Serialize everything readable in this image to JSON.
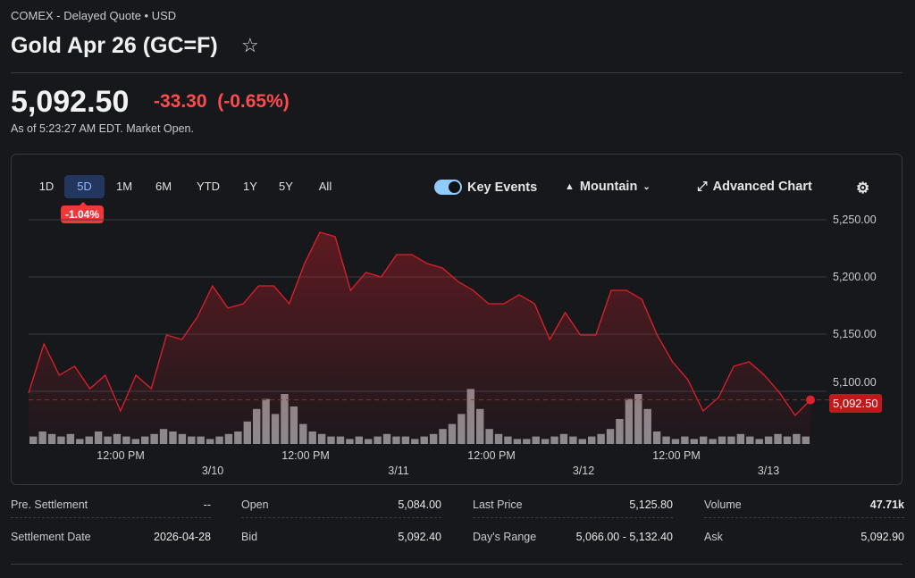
{
  "header": {
    "exchange": "COMEX - Delayed Quote • USD",
    "title": "Gold Apr 26 (GC=F)",
    "star_icon": "☆"
  },
  "quote": {
    "price": "5,092.50",
    "change": "-33.30",
    "change_pct": "(-0.65%)",
    "as_of": "As of 5:23:27 AM EDT. Market Open."
  },
  "ranges": [
    "1D",
    "5D",
    "1M",
    "6M",
    "YTD",
    "1Y",
    "5Y",
    "All"
  ],
  "active_range": "5D",
  "range_change": "-1.04%",
  "toolbar": {
    "key_events": "Key Events",
    "key_events_on": true,
    "chart_type": "Mountain",
    "advanced": "Advanced Chart"
  },
  "chart_data": {
    "type": "area",
    "ylim": [
      5050,
      5270
    ],
    "y_ticks": [
      "5,250.00",
      "5,200.00",
      "5,150.00",
      "5,100.00"
    ],
    "y_tick_values": [
      5250,
      5200,
      5150,
      5100
    ],
    "x_time_labels": [
      "12:00 PM",
      "12:00 PM",
      "12:00 PM",
      "12:00 PM"
    ],
    "x_date_labels": [
      "3/10",
      "3/11",
      "3/12",
      "3/13"
    ],
    "last_price": 5092.5,
    "last_label": "5,092.50",
    "line_color": "#e0202a",
    "values": [
      5098.4,
      5141.4,
      5114.1,
      5121.9,
      5102.3,
      5114.1,
      5082.8,
      5114.1,
      5102.3,
      5149.2,
      5145.3,
      5164.8,
      5192.2,
      5172.7,
      5176.6,
      5192.2,
      5192.2,
      5176.6,
      5211.7,
      5239.1,
      5235.2,
      5188.3,
      5203.9,
      5200,
      5219.5,
      5219.5,
      5211.7,
      5207.8,
      5196.1,
      5188.3,
      5176.6,
      5176.6,
      5184.4,
      5176.6,
      5145.3,
      5168.8,
      5149.2,
      5149.2,
      5188.3,
      5188.3,
      5180.5,
      5149.2,
      5125.8,
      5110.2,
      5082.8,
      5094.5,
      5121.9,
      5125.8,
      5114.1,
      5098.4,
      5078.9,
      5092.5
    ],
    "volume_relative": [
      3,
      5,
      4,
      3,
      4,
      2,
      3,
      5,
      3,
      4,
      3,
      2,
      3,
      4,
      6,
      5,
      4,
      3,
      3,
      2,
      3,
      4,
      5,
      9,
      14,
      18,
      12,
      20,
      15,
      8,
      5,
      4,
      3,
      3,
      2,
      3,
      2,
      3,
      4,
      3,
      3,
      2,
      3,
      4,
      6,
      8,
      12,
      22,
      14,
      6,
      4,
      3,
      2,
      2,
      3,
      2,
      3,
      4,
      3,
      2,
      3,
      4,
      6,
      10,
      18,
      20,
      14,
      5,
      3,
      2,
      3,
      2,
      3,
      2,
      3,
      3,
      4,
      3,
      2,
      3,
      4,
      3,
      4,
      3
    ]
  },
  "stats": [
    {
      "label": "Pre. Settlement",
      "value": "--"
    },
    {
      "label": "Open",
      "value": "5,084.00"
    },
    {
      "label": "Last Price",
      "value": "5,125.80"
    },
    {
      "label": "Volume",
      "value": "47.71k"
    },
    {
      "label": "Settlement Date",
      "value": "2026-04-28"
    },
    {
      "label": "Bid",
      "value": "5,092.40"
    },
    {
      "label": "Day's Range",
      "value": "5,066.00 - 5,132.40"
    },
    {
      "label": "Ask",
      "value": "5,092.90"
    }
  ]
}
